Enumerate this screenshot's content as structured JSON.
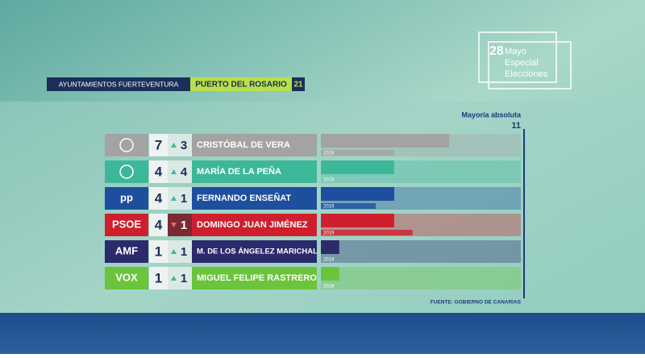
{
  "header": {
    "region": "AYUNTAMIENTOS FUERTEVENTURA",
    "municipality": "PUERTO DEL ROSARIO",
    "total_seats": 21
  },
  "badge": {
    "day": "28",
    "lines": [
      "Mayo",
      "Especial",
      "Elecciones"
    ]
  },
  "majority": {
    "label": "Mayoría absoluta",
    "value": 11
  },
  "previous_label": "2019",
  "rows": [
    {
      "logo": null,
      "color": "#a3a3a3",
      "seats": 7,
      "change": 3,
      "trend": "up",
      "candidate": "CRISTÓBAL DE VERA",
      "seats_2019": 4
    },
    {
      "logo": null,
      "color": "#3db79a",
      "seats": 4,
      "change": 4,
      "trend": "up",
      "candidate": "MARÍA DE LA PEÑA",
      "seats_2019": 0
    },
    {
      "logo": "pp",
      "color": "#1d4f9e",
      "seats": 4,
      "change": 1,
      "trend": "up",
      "candidate": "FERNANDO ENSEÑAT",
      "seats_2019": 3
    },
    {
      "logo": "PSOE",
      "color": "#cf1f2e",
      "seats": 4,
      "change": 1,
      "trend": "down",
      "candidate": "DOMINGO JUAN JIMÉNEZ",
      "seats_2019": 5
    },
    {
      "logo": "AMF",
      "color": "#2b2a6c",
      "seats": 1,
      "change": 1,
      "trend": "up",
      "candidate": "M. DE LOS ÁNGELEZ MARICHAL",
      "seats_2019": 0
    },
    {
      "logo": "VOX",
      "color": "#6bc43b",
      "seats": 1,
      "change": 1,
      "trend": "up",
      "candidate": "MIGUEL FELIPE RASTRERO",
      "seats_2019": 0
    }
  ],
  "source": "FUENTE: GOBIERNO DE CANARIAS"
}
